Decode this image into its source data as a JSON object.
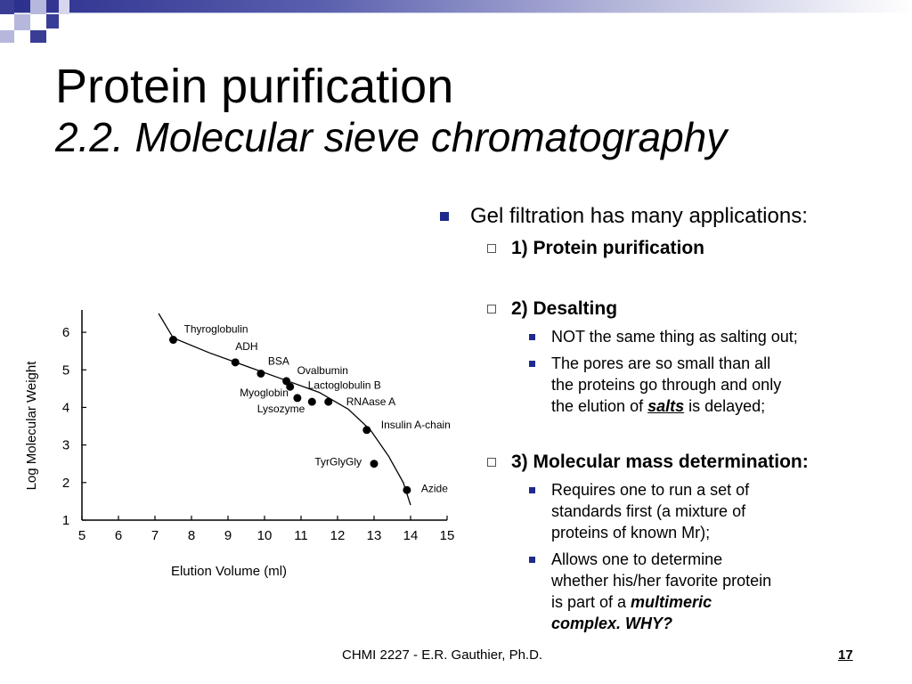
{
  "title": "Protein purification",
  "subtitle": "2.2. Molecular sieve chromatography",
  "bullets": {
    "intro": "Gel filtration has many applications:",
    "app1": "1) Protein purification",
    "app2": "2) Desalting",
    "app2_sub1": "NOT the same thing as salting out;",
    "app2_sub2_pre": "The pores are so small than all the proteins go through and only the elution of ",
    "app2_sub2_em": "salts",
    "app2_sub2_post": " is delayed;",
    "app3": "3) Molecular mass determination:",
    "app3_sub1": "Requires one to run a set of standards first (a mixture of proteins of known Mr);",
    "app3_sub2_pre": "Allows one to determine whether his/her favorite protein is part of a ",
    "app3_sub2_em": "multimeric complex. WHY?"
  },
  "footer": {
    "text": "CHMI 2227 - E.R. Gauthier, Ph.D.",
    "page": "17"
  },
  "colors": {
    "bullet": "#1e2a8c",
    "header_dark": "#2a2e8c"
  },
  "chart_data": {
    "type": "scatter",
    "title": "",
    "xlabel": "Elution Volume (ml)",
    "ylabel": "Log Molecular Weight",
    "xlim": [
      5,
      15
    ],
    "ylim": [
      1,
      6.5
    ],
    "xticks": [
      5,
      6,
      7,
      8,
      9,
      10,
      11,
      12,
      13,
      14,
      15
    ],
    "yticks": [
      1,
      2,
      3,
      4,
      5,
      6
    ],
    "grid": false,
    "points": [
      {
        "label": "Thyroglobulin",
        "x": 7.5,
        "y": 5.8
      },
      {
        "label": "ADH",
        "x": 9.2,
        "y": 5.2
      },
      {
        "label": "BSA",
        "x": 9.9,
        "y": 4.9
      },
      {
        "label": "Ovalbumin",
        "x": 10.6,
        "y": 4.7
      },
      {
        "label": "Lactoglobulin B",
        "x": 10.7,
        "y": 4.55
      },
      {
        "label": "Myoglobin",
        "x": 10.9,
        "y": 4.25
      },
      {
        "label": "Lysozyme",
        "x": 11.3,
        "y": 4.15
      },
      {
        "label": "RNAase A",
        "x": 11.75,
        "y": 4.15
      },
      {
        "label": "Insulin A-chain",
        "x": 12.8,
        "y": 3.4
      },
      {
        "label": "TyrGlyGly",
        "x": 13.0,
        "y": 2.5
      },
      {
        "label": "Azide",
        "x": 13.9,
        "y": 1.8
      }
    ],
    "curve": [
      [
        7.1,
        6.5
      ],
      [
        7.5,
        5.85
      ],
      [
        8.5,
        5.45
      ],
      [
        9.5,
        5.1
      ],
      [
        10.5,
        4.75
      ],
      [
        11.5,
        4.4
      ],
      [
        12.3,
        3.95
      ],
      [
        12.9,
        3.4
      ],
      [
        13.4,
        2.7
      ],
      [
        13.8,
        2.0
      ],
      [
        14.0,
        1.4
      ]
    ]
  }
}
